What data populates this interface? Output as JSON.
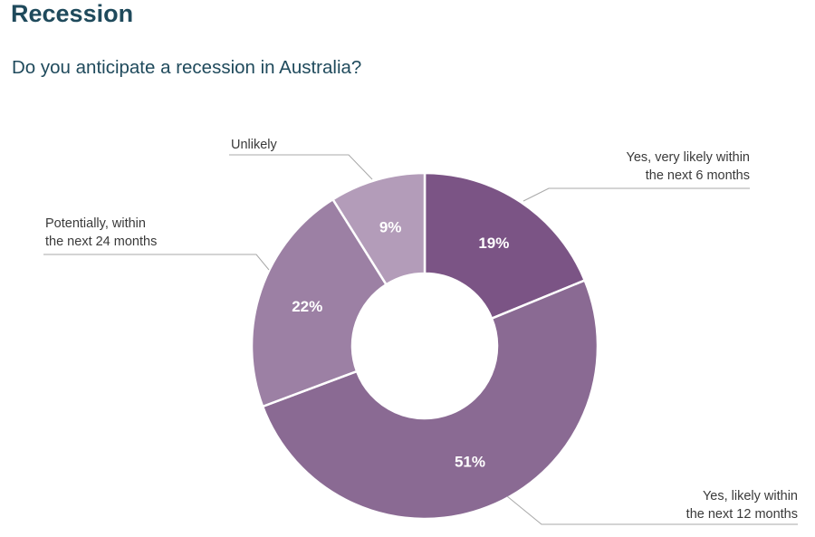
{
  "header": {
    "title": "Recession",
    "subtitle": "Do you anticipate a recession in Australia?"
  },
  "chart_data": {
    "type": "pie",
    "style": "donut",
    "title": "Do you anticipate a recession in Australia?",
    "slices": [
      {
        "label_lines": [
          "Yes, very likely within",
          "the next 6 months"
        ],
        "value": 19,
        "value_label": "19%",
        "color": "#7b5485"
      },
      {
        "label_lines": [
          "Yes, likely within",
          "the next 12 months"
        ],
        "value": 51,
        "value_label": "51%",
        "color": "#8a6a93"
      },
      {
        "label_lines": [
          "Potentially, within",
          "the next 24 months"
        ],
        "value": 22,
        "value_label": "22%",
        "color": "#9c80a4"
      },
      {
        "label_lines": [
          "Unlikely"
        ],
        "value": 9,
        "value_label": "9%",
        "color": "#b39cb9"
      }
    ]
  }
}
